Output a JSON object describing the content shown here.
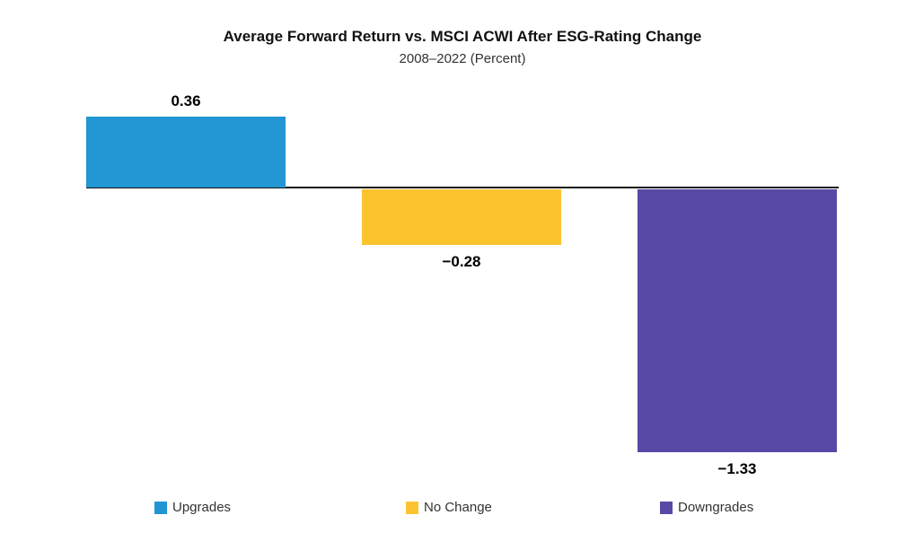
{
  "chart_data": {
    "type": "bar",
    "title": "Average Forward Return vs. MSCI ACWI After ESG-Rating Change",
    "subtitle": "2008–2022 (Percent)",
    "categories": [
      "Upgrades",
      "No Change",
      "Downgrades"
    ],
    "values": [
      0.36,
      -0.28,
      -1.33
    ],
    "value_labels": [
      "0.36",
      "−0.28",
      "−1.33"
    ],
    "colors": [
      "#2196d2",
      "#fdc32f",
      "#5749a5"
    ],
    "xlabel": "",
    "ylabel": "",
    "baseline": 0,
    "grid": false,
    "legend_position": "bottom",
    "legend": [
      {
        "label": "Upgrades",
        "color": "#2196d2"
      },
      {
        "label": "No Change",
        "color": "#fdc32f"
      },
      {
        "label": "Downgrades",
        "color": "#5749a5"
      }
    ]
  }
}
